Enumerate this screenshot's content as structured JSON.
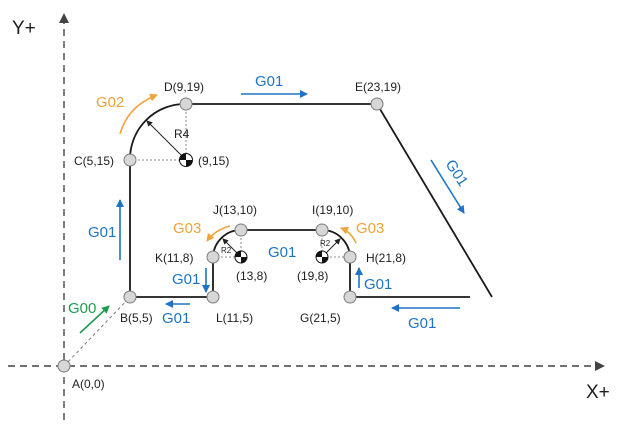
{
  "axes": {
    "x_label": "X+",
    "y_label": "Y+"
  },
  "points": [
    {
      "id": "A",
      "label": "A(0,0)"
    },
    {
      "id": "B",
      "label": "B(5,5)"
    },
    {
      "id": "C",
      "label": "C(5,15)"
    },
    {
      "id": "D",
      "label": "D(9,19)"
    },
    {
      "id": "E",
      "label": "E(23,19)"
    },
    {
      "id": "G",
      "label": "G(21,5)"
    },
    {
      "id": "H",
      "label": "H(21,8)"
    },
    {
      "id": "I",
      "label": "I(19,10)"
    },
    {
      "id": "J",
      "label": "J(13,10)"
    },
    {
      "id": "K",
      "label": "K(11,8)"
    },
    {
      "id": "L",
      "label": "L(11,5)"
    }
  ],
  "centers": [
    {
      "id": "c1",
      "label": "(9,15)",
      "radius_label": "R4"
    },
    {
      "id": "c2",
      "label": "(13,8)",
      "radius_label": "R2"
    },
    {
      "id": "c3",
      "label": "(19,8)",
      "radius_label": "R2"
    }
  ],
  "commands": [
    {
      "id": "g00_ab",
      "label": "G00"
    },
    {
      "id": "g01_bc",
      "label": "G01"
    },
    {
      "id": "g02_cd",
      "label": "G02"
    },
    {
      "id": "g01_de",
      "label": "G01"
    },
    {
      "id": "g01_eg",
      "label": "G01"
    },
    {
      "id": "g01_toG",
      "label": "G01"
    },
    {
      "id": "g01_gh",
      "label": "G01"
    },
    {
      "id": "g03_hi",
      "label": "G03"
    },
    {
      "id": "g01_ij",
      "label": "G01"
    },
    {
      "id": "g03_jk",
      "label": "G03"
    },
    {
      "id": "g01_kl",
      "label": "G01"
    },
    {
      "id": "g01_lb",
      "label": "G01"
    }
  ],
  "colors": {
    "g01": "#1f73c4",
    "g02_g03": "#f0a23a",
    "g00": "#1f9a4e",
    "path": "#1a1a1a",
    "node_fill": "#d7d7d7"
  }
}
